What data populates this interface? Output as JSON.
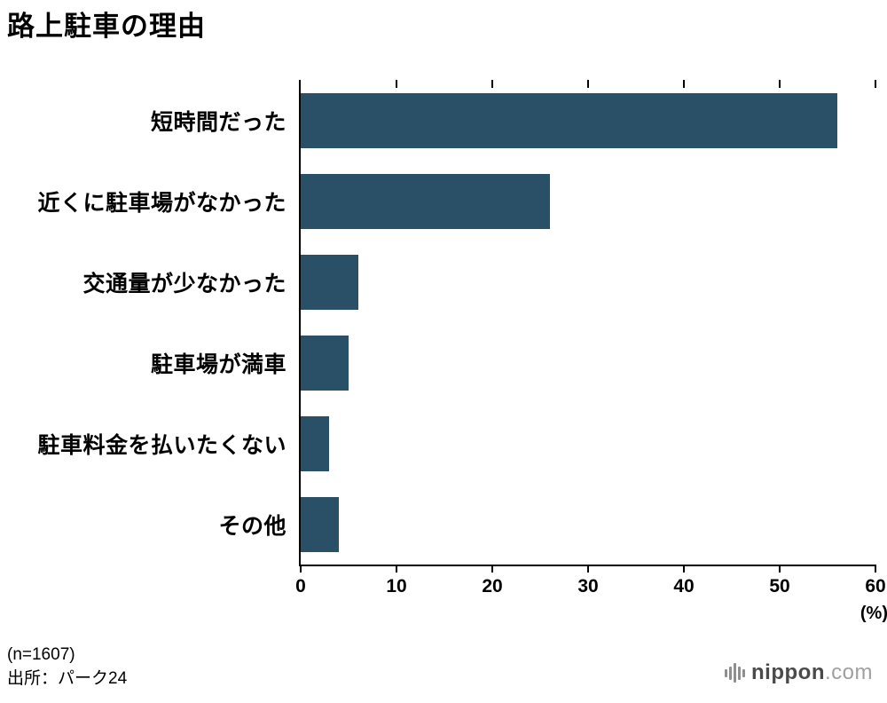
{
  "title": "路上駐車の理由",
  "chart_data": {
    "type": "bar",
    "orientation": "horizontal",
    "title": "路上駐車の理由",
    "categories": [
      "短時間だった",
      "近くに駐車場がなかった",
      "交通量が少なかった",
      "駐車場が満車",
      "駐車料金を払いたくない",
      "その他"
    ],
    "values": [
      56,
      26,
      6,
      5,
      3,
      4
    ],
    "xlim": [
      0,
      60
    ],
    "xticks": [
      0,
      10,
      20,
      30,
      40,
      50,
      60
    ],
    "unit_label": "(%)",
    "bar_color": "#2a5068",
    "grid": false,
    "legend": "none"
  },
  "footer": {
    "sample": "(n=1607)",
    "source": "出所：パーク24"
  },
  "logo": {
    "name": "nippon.com",
    "text_main": "nippon",
    "text_suffix": ".com"
  }
}
